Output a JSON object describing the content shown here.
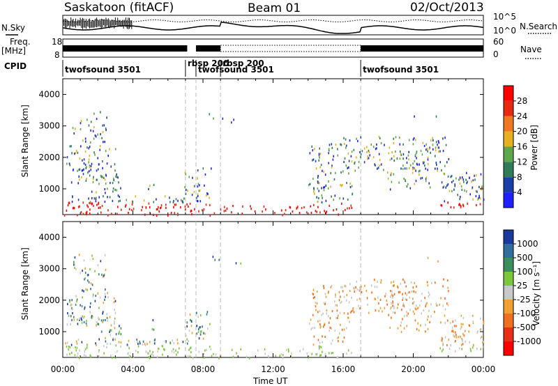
{
  "header": {
    "station": "Saskatoon (fitACF)",
    "beam": "Beam 01",
    "date": "02/Oct/2013"
  },
  "left_labels": {
    "nsky": "N.Sky",
    "freq": "Freq.",
    "freq_unit": "[MHz]",
    "cpid": "CPID"
  },
  "right_labels": {
    "nsearch": "N.Search",
    "nave": "Nave",
    "nsky_top": "10^5",
    "nsky_bottom": "10^0",
    "nave_top": "60",
    "nave_bottom": "0"
  },
  "freq_axis": {
    "top": "18",
    "bottom": "8"
  },
  "cpid_segments": [
    {
      "label": "twofsound 3501",
      "start_hour": 0.0
    },
    {
      "label": "rbsp 200",
      "start_hour": 7.0
    },
    {
      "label": "twofsound 3501",
      "start_hour": 7.6
    },
    {
      "label": "rbsp 200",
      "start_hour": 9.0
    },
    {
      "label": "twofsound 3501",
      "start_hour": 17.0
    }
  ],
  "chart_data": [
    {
      "type": "heatmap",
      "panel": "power",
      "ylabel": "Slant Range [km]",
      "ylim": [
        180,
        4500
      ],
      "yticks": [
        "1000",
        "2000",
        "3000",
        "4000"
      ],
      "xlim_hours": [
        0,
        24
      ],
      "colorbar": {
        "label": "Power [dB]",
        "ticks": [
          "4",
          "8",
          "12",
          "16",
          "20",
          "24",
          "28"
        ],
        "colors": [
          "#1f1fff",
          "#1a3fa8",
          "#2f7c5a",
          "#5fa84a",
          "#e6b020",
          "#f07820",
          "#e82810",
          "#ff0000"
        ]
      }
    },
    {
      "type": "heatmap",
      "panel": "velocity",
      "ylabel": "Slant Range [km]",
      "ylim": [
        180,
        4500
      ],
      "yticks": [
        "1000",
        "2000",
        "3000",
        "4000"
      ],
      "xlim_hours": [
        0,
        24
      ],
      "colorbar": {
        "label": "Velocity [m s⁻¹]",
        "ticks": [
          "1000",
          "500",
          "100",
          "25",
          "-25",
          "-100",
          "-500",
          "-1000"
        ],
        "colors": [
          "#1c3a9e",
          "#2f6e9e",
          "#3c8e5a",
          "#7cc83c",
          "#c8c8c8",
          "#f0a030",
          "#f07020",
          "#e83018",
          "#ff0000"
        ]
      }
    }
  ],
  "x_axis": {
    "label": "Time UT",
    "ticks": [
      "00:00",
      "04:00",
      "08:00",
      "12:00",
      "16:00",
      "20:00",
      "00:00"
    ]
  }
}
